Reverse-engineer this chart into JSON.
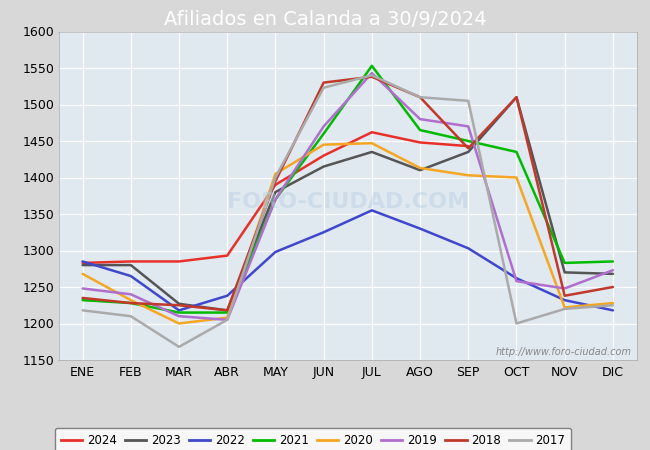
{
  "title": "Afiliados en Calanda a 30/9/2024",
  "ylim": [
    1150,
    1600
  ],
  "yticks": [
    1150,
    1200,
    1250,
    1300,
    1350,
    1400,
    1450,
    1500,
    1550,
    1600
  ],
  "months": [
    "ENE",
    "FEB",
    "MAR",
    "ABR",
    "MAY",
    "JUN",
    "JUL",
    "AGO",
    "SEP",
    "OCT",
    "NOV",
    "DIC"
  ],
  "watermark": "http://www.foro-ciudad.com",
  "series": {
    "2024": {
      "color": "#e8302a",
      "data": [
        1283,
        1285,
        1285,
        1293,
        1390,
        1430,
        1462,
        1448,
        1443,
        null,
        null,
        null
      ]
    },
    "2023": {
      "color": "#555555",
      "data": [
        1280,
        1280,
        1227,
        1218,
        1380,
        1415,
        1435,
        1410,
        1435,
        1510,
        1270,
        1268
      ]
    },
    "2022": {
      "color": "#3f47cc",
      "data": [
        1285,
        1265,
        1218,
        1238,
        1298,
        1325,
        1355,
        1330,
        1303,
        1262,
        1232,
        1218
      ]
    },
    "2021": {
      "color": "#00bb00",
      "data": [
        1232,
        1228,
        1215,
        1215,
        1370,
        1460,
        1553,
        1465,
        1450,
        1435,
        1283,
        1285
      ]
    },
    "2020": {
      "color": "#f5a623",
      "data": [
        1268,
        1232,
        1200,
        1208,
        1405,
        1445,
        1447,
        1413,
        1403,
        1400,
        1222,
        1228
      ]
    },
    "2019": {
      "color": "#b06ece",
      "data": [
        1248,
        1240,
        1210,
        1205,
        1370,
        1470,
        1543,
        1480,
        1470,
        1258,
        1248,
        1273
      ]
    },
    "2018": {
      "color": "#c0392b",
      "data": [
        1235,
        1228,
        1225,
        1218,
        1395,
        1530,
        1538,
        1510,
        1440,
        1510,
        1238,
        1250
      ]
    },
    "2017": {
      "color": "#aaaaaa",
      "data": [
        1218,
        1210,
        1168,
        1205,
        1400,
        1523,
        1540,
        1510,
        1505,
        1200,
        1220,
        1225
      ]
    }
  },
  "legend_order": [
    "2024",
    "2023",
    "2022",
    "2021",
    "2020",
    "2019",
    "2018",
    "2017"
  ],
  "header_color": "#4a90d9",
  "header_text_color": "#ffffff",
  "background_color": "#d8d8d8",
  "plot_bg": "#e0e8f0",
  "grid_color": "#ffffff",
  "title_fontsize": 14
}
